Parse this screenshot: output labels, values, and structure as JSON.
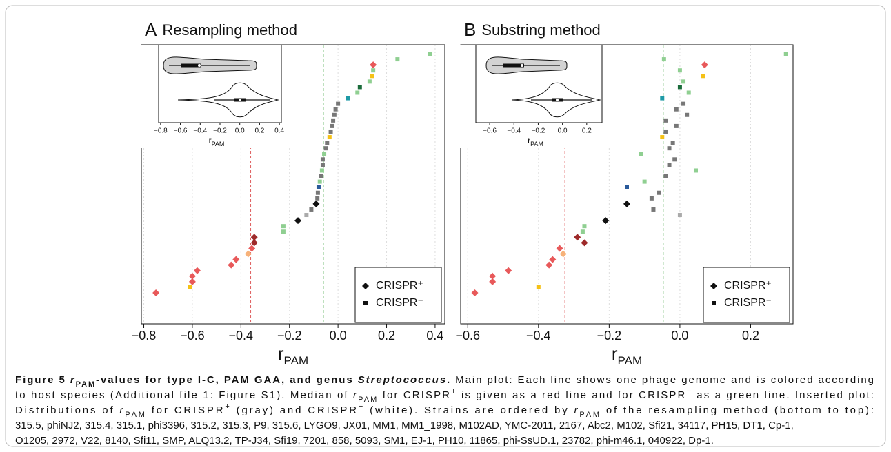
{
  "chart_data": [
    {
      "type": "scatter",
      "letter": "A",
      "title": "Resampling method",
      "xlim": [
        -0.81,
        0.44
      ],
      "xticks": [
        {
          "value": -0.8,
          "label": "−0.8"
        },
        {
          "value": -0.6,
          "label": "−0.6"
        },
        {
          "value": -0.4,
          "label": "−0.4"
        },
        {
          "value": -0.2,
          "label": "−0.2"
        },
        {
          "value": 0,
          "label": "0.0"
        },
        0.2,
        0.4
      ],
      "xlabel": {
        "main": "r",
        "sub": "PAM"
      },
      "grid": true,
      "values": [
        -0.75,
        -0.61,
        -0.6,
        -0.6,
        -0.58,
        -0.44,
        -0.42,
        -0.37,
        -0.355,
        -0.345,
        -0.345,
        -0.225,
        -0.225,
        -0.165,
        -0.13,
        -0.11,
        -0.09,
        -0.085,
        -0.083,
        -0.08,
        -0.075,
        -0.07,
        -0.066,
        -0.063,
        -0.063,
        -0.057,
        -0.05,
        -0.045,
        -0.035,
        -0.03,
        -0.023,
        -0.02,
        -0.015,
        -0.01,
        0.0,
        0.04,
        0.08,
        0.09,
        0.13,
        0.14,
        0.145,
        0.145,
        0.245,
        0.38
      ],
      "markers": [
        "diamond",
        "square",
        "diamond",
        "diamond",
        "diamond",
        "diamond",
        "diamond",
        "diamond",
        "diamond",
        "diamond",
        "diamond",
        "square",
        "square",
        "diamond",
        "square",
        "square",
        "diamond",
        "square",
        "square",
        "square",
        "square",
        "square",
        "square",
        "square",
        "square",
        "square",
        "square",
        "square",
        "square",
        "square",
        "square",
        "square",
        "square",
        "square",
        "square",
        "square",
        "square",
        "square",
        "square",
        "square",
        "square",
        "diamond",
        "square",
        "square"
      ],
      "colors": [
        "#e8595a",
        "#f5c116",
        "#e8595a",
        "#e8595a",
        "#e8595a",
        "#e8595a",
        "#e8595a",
        "#f7b27a",
        "#e8595a",
        "#9e2a2a",
        "#9e2a2a",
        "#8fcf91",
        "#8fcf91",
        "#111111",
        "#aaaaaa",
        "#777777",
        "#111111",
        "#777777",
        "#777777",
        "#2a5a9a",
        "#8fcf91",
        "#777777",
        "#8fcf91",
        "#777777",
        "#777777",
        "#8fcf91",
        "#777777",
        "#777777",
        "#f5c116",
        "#777777",
        "#777777",
        "#777777",
        "#777777",
        "#777777",
        "#777777",
        "#1e9aa6",
        "#8fcf91",
        "#1a6b3a",
        "#8fcf91",
        "#f5c116",
        "#8fcf91",
        "#e8595a",
        "#8fcf91",
        "#8fcf91"
      ],
      "medians": [
        {
          "value": -0.36,
          "color": "#e06666"
        },
        {
          "value": -0.06,
          "color": "#9ccf9c"
        }
      ],
      "inset": {
        "xlim": [
          -0.82,
          0.42
        ],
        "xticks": [
          {
            "value": -0.8,
            "label": "−0.8"
          },
          {
            "value": -0.6,
            "label": "−0.6"
          },
          {
            "value": -0.4,
            "label": "−0.4"
          },
          {
            "value": -0.2,
            "label": "−0.2"
          },
          {
            "value": 0,
            "label": "0.0"
          },
          0.2,
          0.4
        ],
        "xlabel": {
          "main": "r",
          "sub": "PAM"
        }
      },
      "legend": [
        {
          "name": "CRISPR⁺",
          "marker": "diamond"
        },
        {
          "name": "CRISPR⁻",
          "marker": "square"
        }
      ],
      "legend_position": "lower right"
    },
    {
      "type": "scatter",
      "letter": "B",
      "title": "Substring method",
      "xlim": [
        -0.62,
        0.32
      ],
      "xticks": [
        {
          "value": -0.6,
          "label": "−0.6"
        },
        {
          "value": -0.4,
          "label": "−0.4"
        },
        {
          "value": -0.2,
          "label": "−0.2"
        },
        {
          "value": 0,
          "label": "0.0"
        },
        0.2
      ],
      "xlabel": {
        "main": "r",
        "sub": "PAM"
      },
      "grid": true,
      "values": [
        -0.58,
        -0.4,
        -0.53,
        -0.53,
        -0.485,
        -0.37,
        -0.36,
        -0.33,
        -0.34,
        -0.27,
        -0.29,
        -0.275,
        -0.27,
        -0.21,
        0.0,
        -0.075,
        -0.15,
        -0.08,
        -0.06,
        -0.15,
        -0.1,
        -0.04,
        0.045,
        -0.03,
        -0.015,
        -0.11,
        -0.03,
        -0.02,
        -0.05,
        -0.04,
        -0.01,
        -0.04,
        0.02,
        -0.01,
        0.01,
        -0.05,
        0.025,
        0.0,
        0.01,
        0.065,
        0.0,
        0.07,
        -0.045,
        0.3
      ],
      "markers": [
        "diamond",
        "square",
        "diamond",
        "diamond",
        "diamond",
        "diamond",
        "diamond",
        "diamond",
        "diamond",
        "diamond",
        "diamond",
        "square",
        "square",
        "diamond",
        "square",
        "square",
        "diamond",
        "square",
        "square",
        "square",
        "square",
        "square",
        "square",
        "square",
        "square",
        "square",
        "square",
        "square",
        "square",
        "square",
        "square",
        "square",
        "square",
        "square",
        "square",
        "square",
        "square",
        "square",
        "square",
        "square",
        "square",
        "diamond",
        "square",
        "square"
      ],
      "colors": [
        "#e8595a",
        "#f5c116",
        "#e8595a",
        "#e8595a",
        "#e8595a",
        "#e8595a",
        "#e8595a",
        "#f7b27a",
        "#e8595a",
        "#9e2a2a",
        "#9e2a2a",
        "#8fcf91",
        "#8fcf91",
        "#111111",
        "#aaaaaa",
        "#777777",
        "#111111",
        "#777777",
        "#777777",
        "#2a5a9a",
        "#8fcf91",
        "#777777",
        "#8fcf91",
        "#777777",
        "#777777",
        "#8fcf91",
        "#777777",
        "#777777",
        "#f5c116",
        "#777777",
        "#777777",
        "#777777",
        "#777777",
        "#777777",
        "#777777",
        "#1e9aa6",
        "#8fcf91",
        "#1a6b3a",
        "#8fcf91",
        "#f5c116",
        "#8fcf91",
        "#e8595a",
        "#8fcf91",
        "#8fcf91"
      ],
      "medians": [
        {
          "value": -0.325,
          "color": "#e06666"
        },
        {
          "value": -0.047,
          "color": "#9ccf9c"
        }
      ],
      "inset": {
        "xlim": [
          -0.714,
          0.326
        ],
        "xticks": [
          {
            "value": -0.6,
            "label": "−0.6"
          },
          {
            "value": -0.4,
            "label": "−0.4"
          },
          {
            "value": -0.2,
            "label": "−0.2"
          },
          {
            "value": 0,
            "label": "0.0"
          },
          0.2
        ],
        "xlabel": {
          "main": "r",
          "sub": "PAM"
        }
      },
      "legend": [
        {
          "name": "CRISPR⁺",
          "marker": "diamond"
        },
        {
          "name": "CRISPR⁻",
          "marker": "square"
        }
      ],
      "legend_position": "lower right"
    }
  ],
  "caption": {
    "lines": [
      [
        {
          "text": "Figure 5 ",
          "style": "b"
        },
        {
          "text": "r",
          "style": "bi"
        },
        {
          "text": "PAM",
          "style": "bsub"
        },
        {
          "text": "-values for type I-C, PAM GAA, and genus ",
          "style": "b"
        },
        {
          "text": "Streptococcus",
          "style": "bi"
        },
        {
          "text": ". ",
          "style": "b"
        },
        {
          "text": "Main plot: Each line shows one phage genome and is colored according",
          "style": "n"
        }
      ],
      [
        {
          "text": "to host species (Additional file 1: Figure S1). Median of ",
          "style": "n"
        },
        {
          "text": "r",
          "style": "i"
        },
        {
          "text": "PAM",
          "style": "sub"
        },
        {
          "text": " for CRISPR",
          "style": "n"
        },
        {
          "text": "+",
          "style": "sup"
        },
        {
          "text": " is given as a red line and for CRISPR",
          "style": "n"
        },
        {
          "text": "−",
          "style": "sup"
        },
        {
          "text": " as a green line. Inserted plot:",
          "style": "n"
        }
      ],
      [
        {
          "text": "Distributions of ",
          "style": "n"
        },
        {
          "text": "r",
          "style": "i"
        },
        {
          "text": "PAM",
          "style": "sub"
        },
        {
          "text": " for CRISPR",
          "style": "n"
        },
        {
          "text": "+",
          "style": "sup"
        },
        {
          "text": " (gray) and CRISPR",
          "style": "n"
        },
        {
          "text": "−",
          "style": "sup"
        },
        {
          "text": " (white). Strains are ordered by ",
          "style": "n"
        },
        {
          "text": "r",
          "style": "i"
        },
        {
          "text": "PAM",
          "style": "sub"
        },
        {
          "text": " of the resampling method (bottom to top):",
          "style": "n"
        }
      ],
      [
        {
          "text": "315.5, phiNJ2, 315.4, 315.1, phi3396, 315.2, 315.3, P9, 315.6, LYGO9, JX01, MM1, MM1_1998, M102AD, YMC-2011, 2167, Abc2, M102, Sfi21, 34117, PH15, DT1, Cp-1,",
          "style": "n"
        }
      ],
      [
        {
          "text": "O1205, 2972, V22, 8140, Sfi11, SMP, ALQ13.2, TP-J34, Sfi19, 7201, 858, 5093, SM1, EJ-1, PH10, 11865, phi-SsUD.1, 23782, phi-m46.1, 040922, Dp-1.",
          "style": "n"
        }
      ]
    ]
  }
}
